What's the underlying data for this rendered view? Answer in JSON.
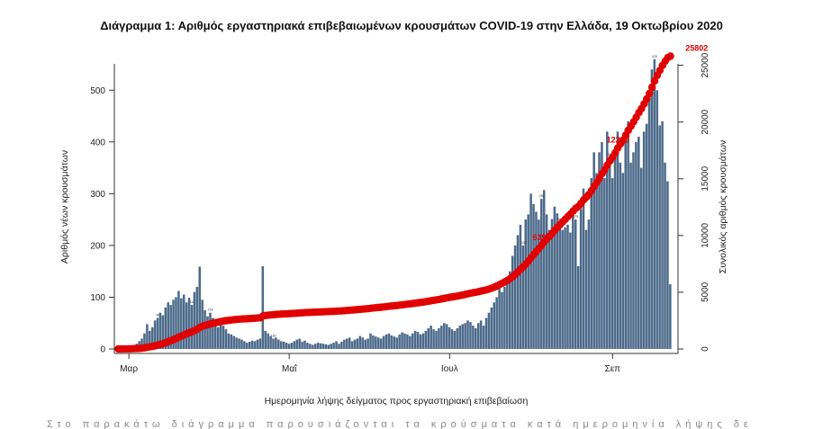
{
  "chart_data": {
    "type": "bar",
    "title": "Διάγραμμα 1: Αριθμός εργαστηριακά επιβεβαιωμένων κρουσμάτων COVID-19 στην Ελλάδα, 19 Οκτωβρίου 2020",
    "xlabel": "Ημερομηνία λήψης δείγματος προς εργαστηριακή επιβεβαίωση",
    "ylabel": "Αριθμός νέων κρουσμάτων",
    "y2label": "Συνολικός αριθμός κρουσμάτων",
    "ylim": [
      0,
      570
    ],
    "y2lim": [
      0,
      26000
    ],
    "yticks": [
      0,
      100,
      200,
      300,
      400,
      500
    ],
    "y2ticks": [
      0,
      5000,
      10000,
      15000,
      20000,
      25000
    ],
    "xtick_labels": [
      "Μαρ",
      "Μαΐ",
      "Ιουλ",
      "Σεπ"
    ],
    "xtick_days": [
      0,
      61,
      122,
      184
    ],
    "start_day": -4,
    "series": [
      {
        "name": "Νέα κρούσματα",
        "kind": "bar",
        "values": [
          0,
          1,
          2,
          3,
          4,
          5,
          8,
          10,
          15,
          20,
          30,
          48,
          35,
          42,
          55,
          60,
          70,
          65,
          80,
          90,
          85,
          95,
          100,
          112,
          98,
          105,
          90,
          99,
          85,
          110,
          120,
          159,
          95,
          75,
          63,
          70,
          60,
          55,
          42,
          50,
          45,
          38,
          30,
          28,
          25,
          22,
          20,
          18,
          15,
          12,
          14,
          16,
          15,
          18,
          20,
          160,
          35,
          30,
          25,
          20,
          22,
          18,
          15,
          14,
          12,
          10,
          12,
          15,
          18,
          20,
          14,
          16,
          12,
          10,
          8,
          10,
          12,
          11,
          10,
          9,
          8,
          10,
          12,
          15,
          10,
          14,
          18,
          20,
          22,
          15,
          18,
          20,
          25,
          22,
          18,
          20,
          30,
          26,
          24,
          22,
          20,
          25,
          28,
          30,
          26,
          24,
          22,
          28,
          32,
          30,
          28,
          25,
          30,
          35,
          33,
          28,
          30,
          35,
          40,
          45,
          38,
          35,
          40,
          45,
          50,
          48,
          42,
          38,
          35,
          40,
          45,
          48,
          50,
          55,
          52,
          45,
          40,
          50,
          55,
          45,
          60,
          70,
          80,
          90,
          100,
          128,
          110,
          120,
          135,
          150,
          180,
          200,
          220,
          240,
          200,
          250,
          260,
          300,
          280,
          265,
          250,
          290,
          307,
          260,
          230,
          251,
          275,
          262,
          245,
          230,
          235,
          240,
          225,
          260,
          250,
          160,
          270,
          310,
          230,
          250,
          330,
          380,
          340,
          380,
          400,
          330,
          420,
          370,
          330,
          390,
          420,
          360,
          340,
          425,
          440,
          360,
          380,
          400,
          410,
          350,
          420,
          435,
          480,
          540,
          560,
          500,
          432,
          440,
          360,
          324,
          125
        ],
        "labels": [
          {
            "day": 11,
            "text": "48"
          },
          {
            "day": 24,
            "text": "112"
          },
          {
            "day": 31,
            "text": "159"
          },
          {
            "day": 55,
            "text": "160"
          },
          {
            "day": 150,
            "text": "128"
          },
          {
            "day": 157,
            "text": "250"
          },
          {
            "day": 164,
            "text": "307"
          },
          {
            "day": 170,
            "text": "275"
          },
          {
            "day": 183,
            "text": "251"
          },
          {
            "day": 200,
            "text": "425"
          },
          {
            "day": 210,
            "text": "435"
          },
          {
            "day": 219,
            "text": "324"
          }
        ]
      },
      {
        "name": "Συνολικά κρούσματα",
        "kind": "cumulative",
        "annotations": [
          {
            "day": 157,
            "text": "6395"
          },
          {
            "day": 186,
            "text": "12290"
          },
          {
            "day": 216,
            "text": "25802"
          }
        ]
      }
    ]
  },
  "footer_text": "Στο παρακάτω διάγραμμα παρουσιάζονται τα κρούσματα κατά ημερομηνία λήψης δείγματος"
}
